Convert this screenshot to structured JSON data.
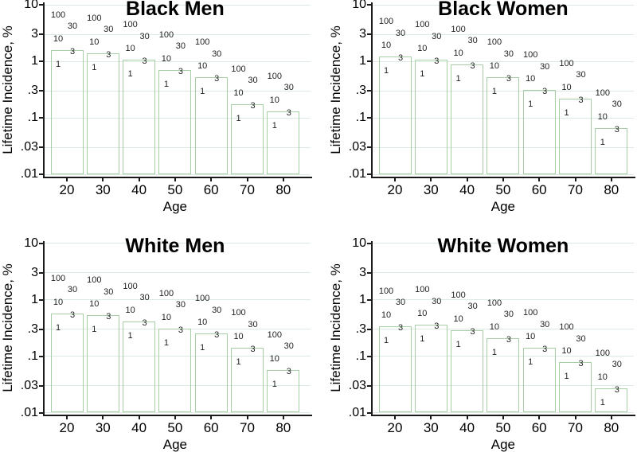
{
  "figure": {
    "background": "#ffffff",
    "bar_outline_color": "#a6cfa6",
    "gridline_color": "#dceae1",
    "axis_color": "#1a1a1a",
    "text_color": "#000000",
    "annotation_color": "#1f1f1f"
  },
  "chart_data": {
    "type": "bar",
    "layout": "2x2-small-multiples",
    "x": [
      20,
      30,
      40,
      50,
      60,
      70,
      80
    ],
    "xlabel": "Age",
    "ylabel": "Lifetime Incidence, %",
    "yscale": "log",
    "ylim": [
      0.01,
      10
    ],
    "bar_base": 0.01,
    "grid": "on",
    "yticks": [
      {
        "value": 10,
        "label": "10"
      },
      {
        "value": 3,
        "label": "3"
      },
      {
        "value": 1,
        "label": "1"
      },
      {
        "value": 0.3,
        "label": ".3"
      },
      {
        "value": 0.1,
        "label": ".1"
      },
      {
        "value": 0.03,
        "label": ".03"
      },
      {
        "value": 0.01,
        "label": ".01"
      }
    ],
    "annotation_labels_per_bar": [
      "100",
      "30",
      "10",
      "3",
      "1"
    ],
    "panels": [
      {
        "title": "Black Men",
        "values": [
          1.6,
          1.4,
          1.05,
          0.7,
          0.52,
          0.175,
          0.13
        ]
      },
      {
        "title": "Black Women",
        "values": [
          1.2,
          1.05,
          0.88,
          0.52,
          0.31,
          0.22,
          0.066
        ]
      },
      {
        "title": "White Men",
        "values": [
          0.57,
          0.53,
          0.41,
          0.31,
          0.25,
          0.14,
          0.057
        ]
      },
      {
        "title": "White Women",
        "values": [
          0.34,
          0.36,
          0.29,
          0.21,
          0.14,
          0.078,
          0.027
        ]
      }
    ]
  }
}
